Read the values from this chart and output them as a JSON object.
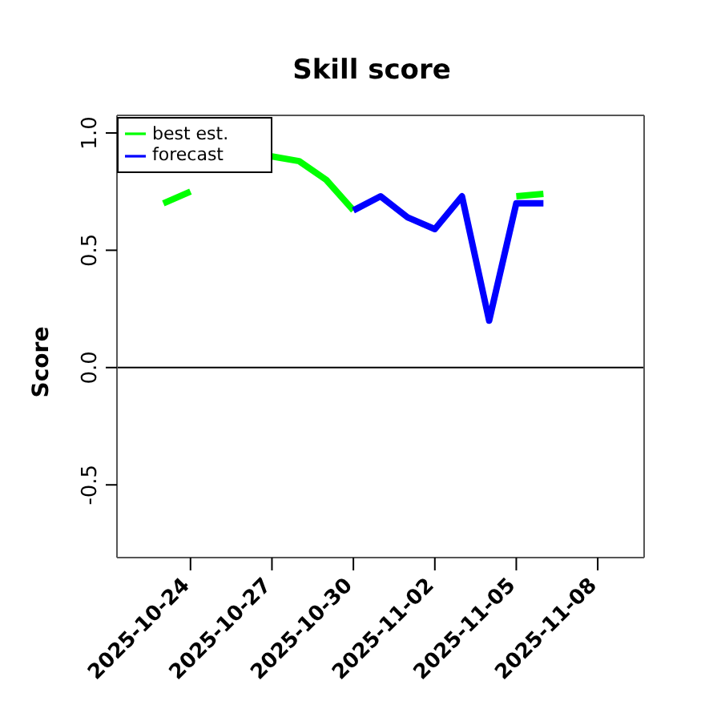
{
  "chart_data": {
    "type": "line",
    "title": "Skill score",
    "ylabel": "Score",
    "x": [
      "2025-10-23",
      "2025-10-24",
      "2025-10-25",
      "2025-10-26",
      "2025-10-27",
      "2025-10-28",
      "2025-10-29",
      "2025-10-30",
      "2025-10-31",
      "2025-11-01",
      "2025-11-02",
      "2025-11-03",
      "2025-11-04",
      "2025-11-05",
      "2025-11-06"
    ],
    "series": [
      {
        "name": "best est.",
        "color": "#00ff00",
        "values": [
          0.7,
          0.75,
          null,
          null,
          0.9,
          0.88,
          0.8,
          0.67,
          null,
          null,
          null,
          null,
          null,
          0.73,
          0.74
        ]
      },
      {
        "name": "forecast",
        "color": "#0000ff",
        "values": [
          null,
          null,
          null,
          null,
          null,
          null,
          null,
          0.67,
          0.73,
          0.64,
          0.59,
          0.73,
          0.2,
          0.7,
          0.7
        ]
      }
    ],
    "xlim": [
      "2025-10-21T07:00",
      "2025-11-09T17:00"
    ],
    "xticks": [
      "2025-10-24",
      "2025-10-27",
      "2025-10-30",
      "2025-11-02",
      "2025-11-05",
      "2025-11-08"
    ],
    "ylim": [
      -0.81,
      1.075
    ],
    "yticks": [
      {
        "value": -0.5,
        "label": "-0.5"
      },
      {
        "value": 0,
        "label": "0.0"
      },
      {
        "value": 0.5,
        "label": "0.5"
      },
      {
        "value": 1,
        "label": "1.0"
      }
    ],
    "ref_lines": [
      {
        "axis": "y",
        "value": 0,
        "color": "#000000"
      }
    ],
    "legend": "top left",
    "grid": false,
    "marker": "none",
    "line_style": "solid"
  }
}
